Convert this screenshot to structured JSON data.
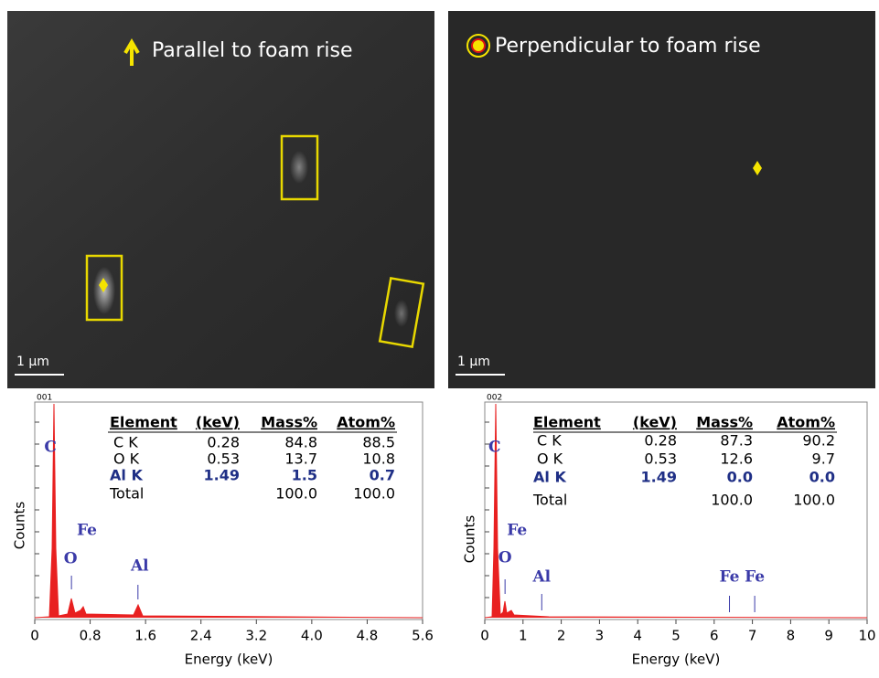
{
  "images": [
    {
      "caption": "Parallel to foam rise",
      "scale_bar": "1 µm"
    },
    {
      "caption": "Perpendicular to foam rise",
      "scale_bar": "1 µm"
    }
  ],
  "spectra": [
    {
      "id": "001",
      "ylabel": "Counts",
      "xlabel": "Energy (keV)",
      "xlim": [
        0,
        5.6
      ],
      "xticks": [
        0,
        0.8,
        1.6,
        2.4,
        3.2,
        {
          "value": 4,
          "label": "4.0"
        },
        4.8,
        5.6
      ],
      "peaks": [
        {
          "label": "C",
          "x": 0.28
        },
        {
          "label": "Fe",
          "x": 0.7
        },
        {
          "label": "O",
          "x": 0.53
        },
        {
          "label": "Al",
          "x": 1.49
        }
      ],
      "table": {
        "header": [
          "Element",
          "(keV)",
          "Mass%",
          "Atom%"
        ],
        "rows": [
          [
            "C K",
            "0.28",
            "84.8",
            "88.5"
          ],
          [
            "O K",
            "0.53",
            "13.7",
            "10.8"
          ],
          [
            "Al K",
            "1.49",
            "1.5",
            "0.7"
          ],
          [
            "Total",
            "",
            "100.0",
            "100.0"
          ]
        ]
      }
    },
    {
      "id": "002",
      "ylabel": "Counts",
      "xlabel": "Energy (keV)",
      "xlim": [
        0,
        10
      ],
      "xticks": [
        0,
        1,
        2,
        3,
        4,
        5,
        6,
        7,
        8,
        9,
        10
      ],
      "peaks": [
        {
          "label": "C",
          "x": 0.28
        },
        {
          "label": "Fe",
          "x": 0.7
        },
        {
          "label": "O",
          "x": 0.53
        },
        {
          "label": "Al",
          "x": 1.49
        },
        {
          "label": "Fe",
          "x": 6.4
        },
        {
          "label": "Fe",
          "x": 7.06
        }
      ],
      "table": {
        "header": [
          "Element",
          "(keV)",
          "Mass%",
          "Atom%"
        ],
        "rows": [
          [
            "C K",
            "0.28",
            "87.3",
            "90.2"
          ],
          [
            "O K",
            "0.53",
            "12.6",
            "9.7"
          ],
          [
            "Al K",
            "1.49",
            "0.0",
            "0.0"
          ],
          [
            "Total",
            "",
            "100.0",
            "100.0"
          ]
        ]
      }
    }
  ]
}
